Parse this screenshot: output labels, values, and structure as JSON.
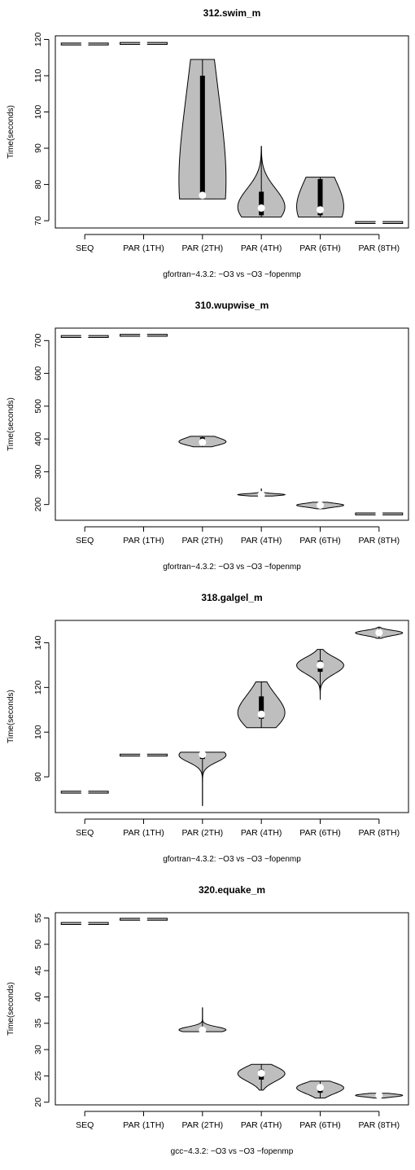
{
  "chart_data": [
    {
      "type": "violin",
      "title": "312.swim_m",
      "ylabel": "Time(seconds)",
      "xlabel": "gfortran−4.3.2: −O3 vs −O3 −fopenmp",
      "ylim": [
        68,
        121
      ],
      "yticks": [
        70,
        80,
        90,
        100,
        110,
        120
      ],
      "categories": [
        "SEQ",
        "PAR (1TH)",
        "PAR (2TH)",
        "PAR (4TH)",
        "PAR (6TH)",
        "PAR (8TH)"
      ],
      "series": [
        {
          "min": 118.5,
          "max": 119.0,
          "q1": 118.6,
          "q3": 118.9,
          "median": 118.8
        },
        {
          "min": 118.6,
          "max": 119.2,
          "q1": 118.7,
          "q3": 119.0,
          "median": 118.9
        },
        {
          "min": 76,
          "max": 114.5,
          "q1": 77,
          "q3": 110,
          "median": 77
        },
        {
          "min": 71,
          "max": 90.5,
          "q1": 71.5,
          "q3": 78,
          "median": 73.5
        },
        {
          "min": 71,
          "max": 82,
          "q1": 71.5,
          "q3": 81.5,
          "median": 73
        },
        {
          "min": 69.3,
          "max": 69.7,
          "q1": 69.4,
          "q3": 69.6,
          "median": 69.5
        }
      ]
    },
    {
      "type": "violin",
      "title": "310.wupwise_m",
      "ylabel": "Time(seconds)",
      "xlabel": "gfortran−4.3.2: −O3 vs −O3 −fopenmp",
      "ylim": [
        152,
        738
      ],
      "yticks": [
        200,
        300,
        400,
        500,
        600,
        700
      ],
      "categories": [
        "SEQ",
        "PAR (1TH)",
        "PAR (2TH)",
        "PAR (4TH)",
        "PAR (6TH)",
        "PAR (8TH)"
      ],
      "series": [
        {
          "min": 710,
          "max": 715,
          "q1": 712,
          "q3": 714,
          "median": 713
        },
        {
          "min": 714,
          "max": 718,
          "q1": 715,
          "q3": 717,
          "median": 716
        },
        {
          "min": 376,
          "max": 408,
          "q1": 388,
          "q3": 405,
          "median": 390
        },
        {
          "min": 226,
          "max": 249,
          "q1": 228,
          "q3": 232,
          "median": 230
        },
        {
          "min": 187,
          "max": 207,
          "q1": 194,
          "q3": 202,
          "median": 198
        },
        {
          "min": 170,
          "max": 173,
          "q1": 171,
          "q3": 172,
          "median": 171.5
        }
      ]
    },
    {
      "type": "violin",
      "title": "318.galgel_m",
      "ylabel": "Time(seconds)",
      "xlabel": "gfortran−4.3.2: −O3 vs −O3 −fopenmp",
      "ylim": [
        64,
        150
      ],
      "yticks": [
        80,
        100,
        120,
        140
      ],
      "categories": [
        "SEQ",
        "PAR (1TH)",
        "PAR (2TH)",
        "PAR (4TH)",
        "PAR (6TH)",
        "PAR (8TH)"
      ],
      "series": [
        {
          "min": 72.8,
          "max": 73.5,
          "q1": 73.0,
          "q3": 73.3,
          "median": 73.1
        },
        {
          "min": 89.3,
          "max": 90.1,
          "q1": 89.5,
          "q3": 89.9,
          "median": 89.7
        },
        {
          "min": 67,
          "max": 91,
          "q1": 88,
          "q3": 91,
          "median": 90
        },
        {
          "min": 102,
          "max": 122.5,
          "q1": 106,
          "q3": 116,
          "median": 108
        },
        {
          "min": 114.5,
          "max": 137,
          "q1": 127,
          "q3": 132,
          "median": 130
        },
        {
          "min": 142,
          "max": 147,
          "q1": 143.5,
          "q3": 145,
          "median": 144.5
        }
      ]
    },
    {
      "type": "violin",
      "title": "320.equake_m",
      "ylabel": "Time(seconds)",
      "xlabel": "gcc−4.3.2: −O3 vs −O3 −fopenmp",
      "ylim": [
        19.5,
        56
      ],
      "yticks": [
        20,
        25,
        30,
        35,
        40,
        45,
        50,
        55
      ],
      "categories": [
        "SEQ",
        "PAR (1TH)",
        "PAR (2TH)",
        "PAR (4TH)",
        "PAR (6TH)",
        "PAR (8TH)"
      ],
      "series": [
        {
          "min": 53.8,
          "max": 54.1,
          "q1": 53.9,
          "q3": 54.0,
          "median": 53.95
        },
        {
          "min": 54.6,
          "max": 54.9,
          "q1": 54.7,
          "q3": 54.8,
          "median": 54.75
        },
        {
          "min": 33.4,
          "max": 38,
          "q1": 33.6,
          "q3": 34,
          "median": 33.7
        },
        {
          "min": 22.3,
          "max": 27.2,
          "q1": 24.3,
          "q3": 26.2,
          "median": 25.5
        },
        {
          "min": 20.8,
          "max": 24,
          "q1": 21.8,
          "q3": 23.2,
          "median": 22.8
        },
        {
          "min": 20.8,
          "max": 21.7,
          "q1": 21.1,
          "q3": 21.5,
          "median": 21.3
        }
      ]
    }
  ],
  "colors": {
    "violin_fill": "#bebebe",
    "box": "#000000",
    "median_dot": "#ffffff"
  }
}
